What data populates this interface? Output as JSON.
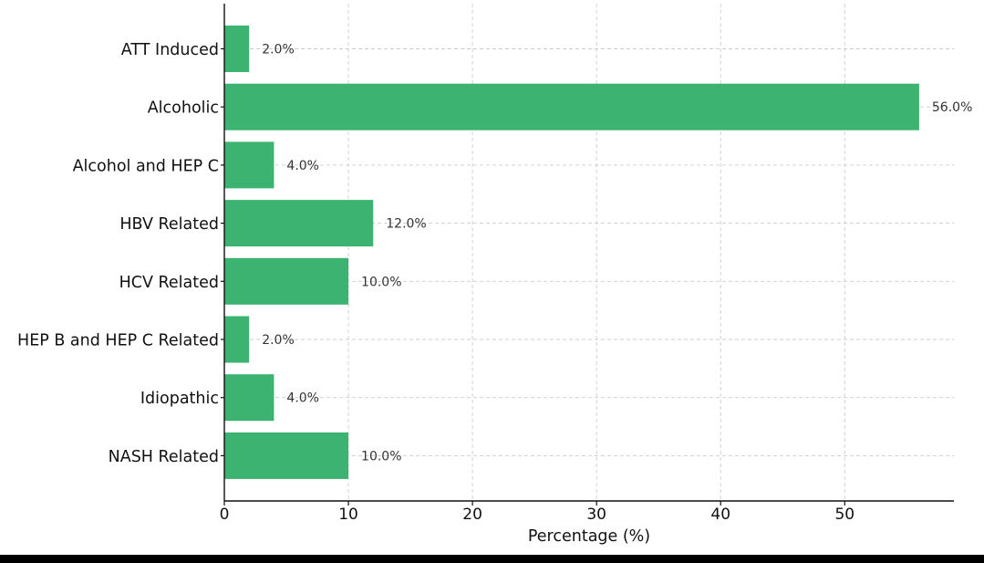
{
  "chart_data": {
    "type": "bar",
    "orientation": "horizontal",
    "categories": [
      "ATT Induced",
      "Alcoholic",
      "Alcohol and HEP C",
      "HBV Related",
      "HCV Related",
      "HEP B and HEP C Related",
      "Idiopathic",
      "NASH Related"
    ],
    "values": [
      2.0,
      56.0,
      4.0,
      12.0,
      10.0,
      2.0,
      4.0,
      10.0
    ],
    "value_labels": [
      "2.0%",
      "56.0%",
      "4.0%",
      "12.0%",
      "10.0%",
      "2.0%",
      "4.0%",
      "10.0%"
    ],
    "title": "",
    "xlabel": "Percentage (%)",
    "ylabel": "",
    "xlim": [
      0,
      58.8
    ],
    "xticks": [
      0,
      10,
      20,
      30,
      40,
      50
    ],
    "xtick_labels": [
      "0",
      "10",
      "20",
      "30",
      "40",
      "50"
    ],
    "grid": true,
    "bar_color": "#3cb371",
    "grid_color": "#cccccc"
  }
}
